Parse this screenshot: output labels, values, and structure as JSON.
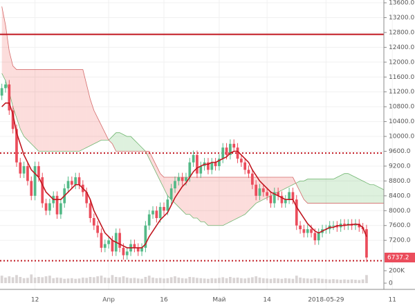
{
  "chart_data": {
    "type": "candlestick",
    "categories": [
      null,
      null,
      null,
      null,
      null,
      null,
      null,
      null,
      null,
      "12",
      null,
      null,
      null,
      null,
      null,
      null,
      null,
      null,
      null,
      null,
      null,
      null,
      null,
      null,
      null,
      null,
      null,
      null,
      null,
      "Апр",
      null,
      null,
      null,
      null,
      null,
      null,
      null,
      null,
      null,
      null,
      null,
      null,
      null,
      null,
      "16",
      null,
      null,
      null,
      null,
      null,
      null,
      null,
      null,
      null,
      null,
      null,
      null,
      null,
      null,
      "Май",
      null,
      null,
      null,
      null,
      null,
      null,
      null,
      null,
      null,
      null,
      null,
      null,
      "14",
      null,
      null,
      null,
      null,
      null,
      null,
      null,
      null,
      null,
      null,
      null,
      null,
      null,
      null,
      null,
      "2018-05-29",
      null,
      null,
      null,
      null,
      null,
      null,
      null,
      null,
      null,
      null,
      null,
      null,
      null,
      null,
      null,
      null,
      null,
      "11"
    ],
    "crosshair_index": 87,
    "candles": {
      "up_color": "#53b987",
      "down_color": "#eb4d5c",
      "open": [
        11100,
        11300,
        11400,
        10700,
        10200,
        9300,
        9000,
        9200,
        8800,
        8400,
        9200,
        8900,
        8200,
        8000,
        8200,
        8400,
        7900,
        8200,
        8600,
        8800,
        8700,
        8900,
        8700,
        8500,
        8200,
        7800,
        7600,
        7400,
        7000,
        7100,
        7200,
        6900,
        7400,
        7000,
        6800,
        6900,
        7100,
        7000,
        6900,
        7000,
        7600,
        7900,
        8000,
        7800,
        8100,
        8000,
        8300,
        8600,
        8800,
        8900,
        8800,
        8900,
        9300,
        9500,
        9000,
        9200,
        9300,
        9100,
        9300,
        9200,
        9400,
        9700,
        9500,
        9800,
        9700,
        9400,
        9300,
        9100,
        9000,
        8700,
        8400,
        8600,
        8500,
        8400,
        8200,
        8500,
        8400,
        8200,
        8300,
        8500,
        8300,
        7600,
        7500,
        7400,
        7500,
        7400,
        7200,
        7400,
        7500,
        7500,
        7600,
        7600,
        7550,
        7650,
        7600,
        7650,
        7600,
        7650,
        7550,
        7500,
        null,
        null,
        null,
        null,
        null,
        null
      ],
      "high": [
        11420,
        11520,
        11520,
        10820,
        10320,
        9420,
        9320,
        9320,
        8920,
        9320,
        9320,
        9020,
        8320,
        8320,
        8520,
        8520,
        8320,
        8720,
        8920,
        8920,
        9020,
        9020,
        8820,
        8620,
        8320,
        7920,
        7720,
        7520,
        7220,
        7320,
        7320,
        7520,
        7520,
        7120,
        7020,
        7220,
        7220,
        7120,
        7120,
        7720,
        8020,
        8120,
        8120,
        8220,
        8220,
        8420,
        8720,
        8920,
        9020,
        9020,
        9020,
        9420,
        9620,
        9620,
        9320,
        9420,
        9420,
        9420,
        9420,
        9520,
        9820,
        9820,
        9920,
        9920,
        9820,
        9520,
        9420,
        9220,
        9120,
        8820,
        8720,
        8720,
        8620,
        8520,
        8620,
        8620,
        8520,
        8420,
        8620,
        8620,
        8420,
        7720,
        7620,
        7620,
        7620,
        7520,
        7520,
        7620,
        7620,
        7720,
        7720,
        7720,
        7770,
        7770,
        7770,
        7770,
        7770,
        7770,
        7670,
        7620,
        null,
        null,
        null,
        null,
        null,
        null
      ],
      "low": [
        10980,
        11180,
        10580,
        10080,
        9180,
        8880,
        8880,
        8680,
        8280,
        8280,
        8780,
        8080,
        7880,
        7880,
        8080,
        7780,
        7780,
        8080,
        8480,
        8580,
        8580,
        8580,
        8380,
        8080,
        7680,
        7480,
        7280,
        6880,
        6880,
        6980,
        6780,
        6780,
        6880,
        6680,
        6680,
        6780,
        6880,
        6780,
        6780,
        6880,
        7480,
        7780,
        7680,
        7680,
        7880,
        7880,
        8180,
        8480,
        8680,
        8680,
        8680,
        8780,
        9180,
        8880,
        8880,
        9080,
        8980,
        8980,
        9080,
        9080,
        9280,
        9380,
        9380,
        9580,
        9280,
        9180,
        8980,
        8880,
        8580,
        8280,
        8280,
        8380,
        8280,
        8080,
        8080,
        8280,
        8080,
        8080,
        8180,
        8180,
        7480,
        7380,
        7280,
        7280,
        7280,
        7080,
        7080,
        7280,
        7380,
        7380,
        7480,
        7430,
        7430,
        7480,
        7480,
        7480,
        7480,
        7430,
        7380,
        6617.2,
        null,
        null,
        null,
        null,
        null,
        null
      ],
      "close": [
        11300,
        11400,
        10700,
        10200,
        9300,
        9000,
        9200,
        8800,
        8400,
        9200,
        8900,
        8200,
        8000,
        8200,
        8400,
        7900,
        8200,
        8600,
        8800,
        8700,
        8900,
        8700,
        8500,
        8200,
        7800,
        7600,
        7400,
        7000,
        7100,
        7200,
        6900,
        7400,
        7000,
        6800,
        6900,
        7100,
        7000,
        6900,
        7000,
        7600,
        7900,
        8000,
        7800,
        8100,
        8000,
        8300,
        8600,
        8800,
        8900,
        8800,
        8900,
        9300,
        9500,
        9000,
        9200,
        9300,
        9100,
        9300,
        9200,
        9400,
        9700,
        9500,
        9800,
        9700,
        9400,
        9300,
        9100,
        9000,
        8700,
        8400,
        8600,
        8500,
        8400,
        8200,
        8500,
        8400,
        8200,
        8300,
        8500,
        8300,
        7600,
        7500,
        7400,
        7500,
        7400,
        7200,
        7400,
        7500,
        7500,
        7600,
        7600,
        7550,
        7650,
        7600,
        7650,
        7600,
        7650,
        7550,
        7500,
        6737.2,
        null,
        null,
        null,
        null,
        null,
        null
      ]
    },
    "moving_average": {
      "color": "#c0161f",
      "values": [
        10800,
        10900,
        10900,
        10600,
        10100,
        9800,
        9500,
        9300,
        9100,
        9000,
        8900,
        8700,
        8500,
        8400,
        8300,
        8300,
        8300,
        8400,
        8500,
        8600,
        8700,
        8700,
        8600,
        8500,
        8300,
        8000,
        7800,
        7600,
        7400,
        7300,
        7200,
        7150,
        7100,
        7050,
        7000,
        7000,
        7000,
        7000,
        7000,
        7100,
        7300,
        7450,
        7600,
        7750,
        7850,
        7950,
        8150,
        8350,
        8500,
        8650,
        8750,
        8900,
        9050,
        9150,
        9200,
        9250,
        9250,
        9300,
        9300,
        9350,
        9400,
        9450,
        9550,
        9600,
        9600,
        9500,
        9400,
        9300,
        9100,
        8950,
        8800,
        8700,
        8600,
        8500,
        8450,
        8400,
        8350,
        8300,
        8300,
        8300,
        8100,
        7950,
        7800,
        7650,
        7550,
        7450,
        7400,
        7450,
        7500,
        7550,
        7550,
        7600,
        7600,
        7600,
        7620,
        7620,
        7640,
        7620,
        7550,
        7300,
        null,
        null,
        null,
        null,
        null,
        null
      ]
    },
    "cloud": {
      "span_a_color": "#6fb56f",
      "span_b_color": "#d46a6a",
      "up_fill": "rgba(92,184,92,0.2)",
      "down_fill": "rgba(239,83,80,0.2)",
      "span_a": [
        11700,
        11500,
        11200,
        10800,
        10500,
        10200,
        10000,
        9900,
        9800,
        9700,
        9600,
        9600,
        9600,
        9600,
        9600,
        9600,
        9600,
        9600,
        9600,
        9600,
        9600,
        9600,
        9650,
        9700,
        9750,
        9800,
        9850,
        9900,
        9900,
        9900,
        10000,
        10100,
        10100,
        10050,
        10000,
        10000,
        9900,
        9800,
        9700,
        9600,
        9400,
        9200,
        9000,
        8800,
        8600,
        8400,
        8300,
        8200,
        8100,
        8000,
        7900,
        7900,
        7800,
        7800,
        7700,
        7700,
        7600,
        7600,
        7600,
        7600,
        7600,
        7650,
        7700,
        7750,
        7800,
        7850,
        7900,
        8000,
        8100,
        8200,
        8250,
        8300,
        8350,
        8400,
        8450,
        8500,
        8550,
        8600,
        8650,
        8700,
        8750,
        8800,
        8800,
        8850,
        8850,
        8850,
        8850,
        8850,
        8850,
        8850,
        8850,
        8900,
        8950,
        9000,
        9000,
        8950,
        8900,
        8850,
        8800,
        8750,
        8700,
        8700,
        8650,
        8600,
        8550,
        8550
      ],
      "span_b": [
        13500,
        13000,
        12300,
        11900,
        11800,
        11800,
        11800,
        11800,
        11800,
        11800,
        11800,
        11800,
        11800,
        11800,
        11800,
        11800,
        11800,
        11800,
        11800,
        11800,
        11800,
        11800,
        11800,
        11400,
        11000,
        10700,
        10500,
        10300,
        10100,
        9900,
        9800,
        9600,
        9600,
        9600,
        9600,
        9600,
        9600,
        9600,
        9600,
        9600,
        9600,
        9400,
        9200,
        9000,
        8900,
        8900,
        8900,
        8900,
        8900,
        8900,
        8900,
        8900,
        8900,
        8900,
        8900,
        8900,
        8900,
        8900,
        8900,
        8900,
        8900,
        8900,
        8900,
        8900,
        8900,
        8900,
        8900,
        8900,
        8900,
        8900,
        8900,
        8900,
        8900,
        8900,
        8900,
        8900,
        8900,
        8900,
        8900,
        8900,
        8700,
        8500,
        8300,
        8200,
        8200,
        8200,
        8200,
        8200,
        8200,
        8200,
        8200,
        8200,
        8200,
        8200,
        8200,
        8200,
        8200,
        8200,
        8200,
        8200,
        8200,
        8200,
        8200,
        8200,
        8200,
        8200
      ]
    },
    "hlines": [
      {
        "value": 12750,
        "style": "solid",
        "color": "#c0161f"
      },
      {
        "value": 9550,
        "style": "dotted",
        "color": "#c0161f"
      },
      {
        "value": 6650,
        "style": "dotted",
        "color": "#c0161f"
      }
    ],
    "last_price": 6737.2,
    "last_price_color": "#eb4d5c",
    "ylim": [
      6588,
      13675
    ],
    "yticks": [
      {
        "value": 13600,
        "label": "13600.0"
      },
      {
        "value": 13200,
        "label": "13200.0"
      },
      {
        "value": 12800,
        "label": "12800.0"
      },
      {
        "value": 12400,
        "label": "12400.0"
      },
      {
        "value": 12000,
        "label": "12000.0"
      },
      {
        "value": 11600,
        "label": "11600.0"
      },
      {
        "value": 11200,
        "label": "11200.0"
      },
      {
        "value": 10800,
        "label": "10800.0"
      },
      {
        "value": 10400,
        "label": "10400.0"
      },
      {
        "value": 10000,
        "label": "10000.0"
      },
      {
        "value": 9600,
        "label": "9600.0"
      },
      {
        "value": 9200,
        "label": "9200.0"
      },
      {
        "value": 8800,
        "label": "8800.0"
      },
      {
        "value": 8400,
        "label": "8400.0"
      },
      {
        "value": 8000,
        "label": "8000.0"
      },
      {
        "value": 7600,
        "label": "7600.0"
      },
      {
        "value": 7200,
        "label": "7200.0"
      }
    ],
    "grid": true,
    "volume": {
      "color": "#d9d4d4",
      "ylim": [
        0,
        200000
      ],
      "yticks": [
        0,
        {
          "value": 200000,
          "label": "200K"
        }
      ],
      "values": [
        120000,
        90000,
        110000,
        95000,
        130000,
        100000,
        80000,
        85000,
        140000,
        90000,
        100000,
        95000,
        110000,
        120000,
        80000,
        90000,
        85000,
        70000,
        75000,
        80000,
        70000,
        75000,
        90000,
        85000,
        100000,
        95000,
        110000,
        120000,
        90000,
        85000,
        130000,
        100000,
        95000,
        110000,
        90000,
        80000,
        85000,
        75000,
        70000,
        100000,
        120000,
        90000,
        80000,
        85000,
        75000,
        80000,
        95000,
        110000,
        90000,
        80000,
        75000,
        100000,
        95000,
        85000,
        80000,
        75000,
        70000,
        80000,
        75000,
        85000,
        95000,
        80000,
        100000,
        85000,
        90000,
        80000,
        75000,
        85000,
        95000,
        110000,
        90000,
        80000,
        75000,
        70000,
        80000,
        75000,
        70000,
        80000,
        75000,
        70000,
        120000,
        90000,
        80000,
        75000,
        70000,
        80000,
        75000,
        70000,
        65000,
        60000,
        65000,
        60000,
        55000,
        60000,
        55000,
        60000,
        55000,
        50000,
        60000,
        130000,
        null,
        null,
        null,
        null,
        null,
        null
      ]
    }
  }
}
